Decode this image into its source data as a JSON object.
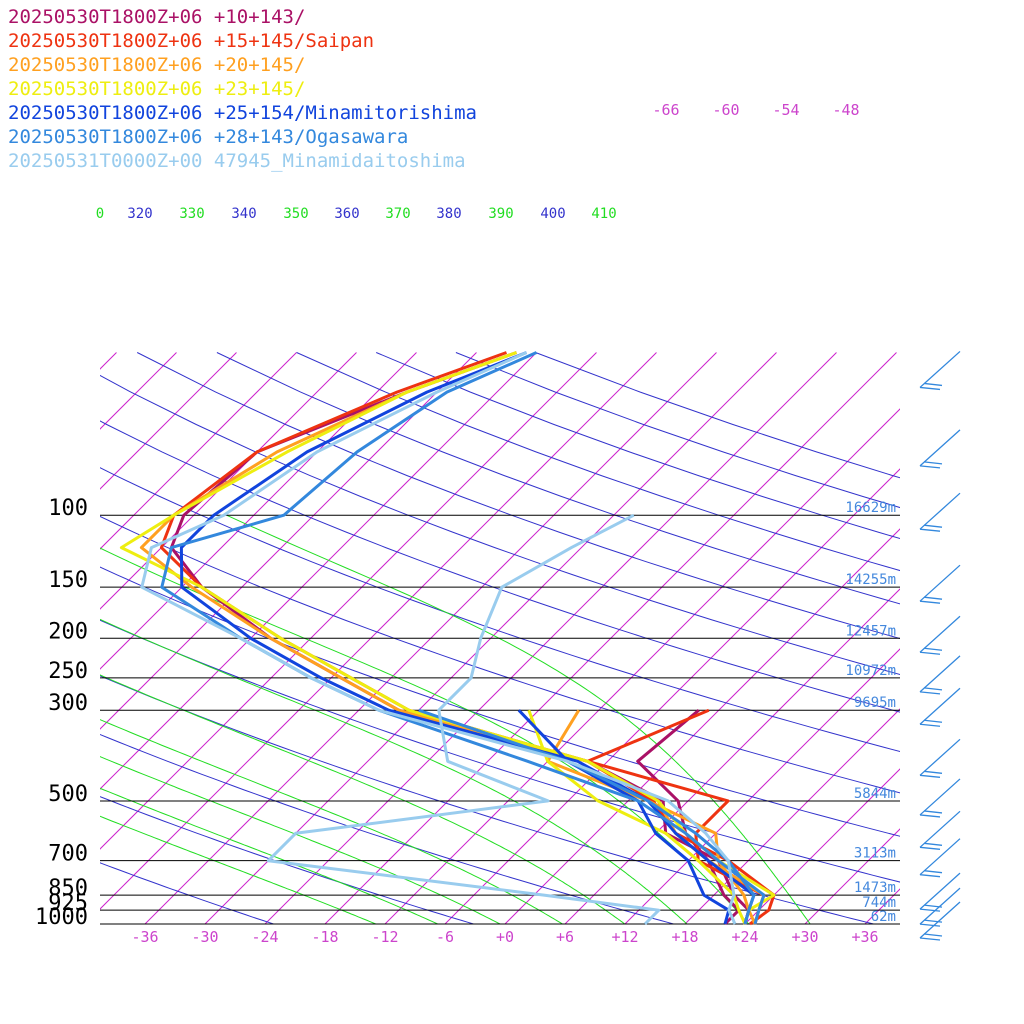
{
  "chart_data": {
    "type": "line",
    "subtype": "skew-T log-P",
    "colors": {
      "isotherm": "#cc22cc",
      "isobar": "#000000",
      "dry_adiabat": "#3333cc",
      "moist_adiabat": "#22dd22",
      "height_label": "#4488dd"
    },
    "series": [
      {
        "name": "20250530T1800Z+06 +10+143/",
        "color": "#aa1166",
        "temperature": [
          [
            1000,
            24
          ],
          [
            925,
            23
          ],
          [
            850,
            20
          ],
          [
            700,
            15
          ],
          [
            600,
            7
          ],
          [
            500,
            3.5
          ],
          [
            400,
            -8
          ],
          [
            300,
            -32
          ],
          [
            250,
            -41
          ],
          [
            200,
            -52
          ],
          [
            150,
            -64
          ],
          [
            120,
            -71
          ],
          [
            100,
            -73
          ],
          [
            70,
            -72
          ],
          [
            50,
            -63
          ],
          [
            40,
            -56
          ]
        ],
        "dewpoint": [
          [
            1000,
            22
          ],
          [
            925,
            22
          ],
          [
            850,
            19
          ],
          [
            700,
            14
          ],
          [
            600,
            9
          ],
          [
            500,
            5
          ],
          [
            400,
            -3
          ],
          [
            300,
            -2
          ]
        ]
      },
      {
        "name": "20250530T1800Z+06 +15+145/Saipan",
        "color": "#ee3311",
        "temperature": [
          [
            1000,
            24.5
          ],
          [
            925,
            25
          ],
          [
            850,
            24
          ],
          [
            700,
            16
          ],
          [
            600,
            8
          ],
          [
            500,
            2.5
          ],
          [
            400,
            -8
          ],
          [
            300,
            -31
          ],
          [
            250,
            -40
          ],
          [
            200,
            -51
          ],
          [
            150,
            -64
          ],
          [
            120,
            -72
          ],
          [
            100,
            -74
          ],
          [
            70,
            -72
          ],
          [
            50,
            -64
          ],
          [
            40,
            -57
          ]
        ],
        "dewpoint": [
          [
            1000,
            25
          ],
          [
            925,
            24
          ],
          [
            850,
            23
          ],
          [
            700,
            13
          ],
          [
            600,
            10
          ],
          [
            500,
            10
          ],
          [
            400,
            -8
          ],
          [
            300,
            -1
          ]
        ]
      },
      {
        "name": "20250530T1800Z+06 +20+145/",
        "color": "#ffa020",
        "temperature": [
          [
            1000,
            25
          ],
          [
            925,
            24
          ],
          [
            850,
            23
          ],
          [
            700,
            14
          ],
          [
            600,
            8
          ],
          [
            500,
            3
          ],
          [
            400,
            -8
          ],
          [
            300,
            -32
          ],
          [
            250,
            -41
          ],
          [
            200,
            -52
          ],
          [
            150,
            -65
          ],
          [
            120,
            -74
          ],
          [
            100,
            -74
          ],
          [
            70,
            -70
          ],
          [
            50,
            -63
          ],
          [
            40,
            -56
          ]
        ],
        "dewpoint": [
          [
            1000,
            25
          ],
          [
            925,
            23
          ],
          [
            850,
            21
          ],
          [
            700,
            15
          ],
          [
            600,
            12
          ],
          [
            500,
            2
          ],
          [
            400,
            -12
          ],
          [
            300,
            -14
          ]
        ]
      },
      {
        "name": "20250530T1800Z+06 +23+145/",
        "color": "#eeee10",
        "temperature": [
          [
            1000,
            24
          ],
          [
            925,
            23
          ],
          [
            850,
            24
          ],
          [
            700,
            15
          ],
          [
            600,
            9
          ],
          [
            500,
            3
          ],
          [
            400,
            -8
          ],
          [
            300,
            -31
          ],
          [
            250,
            -40
          ],
          [
            200,
            -51
          ],
          [
            150,
            -64
          ],
          [
            120,
            -76
          ],
          [
            100,
            -74
          ],
          [
            70,
            -69
          ],
          [
            50,
            -63
          ],
          [
            40,
            -56
          ]
        ],
        "dewpoint": [
          [
            1000,
            24
          ],
          [
            925,
            22
          ],
          [
            850,
            20
          ],
          [
            700,
            13
          ],
          [
            600,
            7
          ],
          [
            500,
            -3
          ],
          [
            400,
            -12
          ],
          [
            300,
            -19
          ]
        ]
      },
      {
        "name": "20250530T1800Z+06 +25+154/Minamitorishima",
        "color": "#1144dd",
        "temperature": [
          [
            1000,
            24
          ],
          [
            925,
            23
          ],
          [
            850,
            22
          ],
          [
            700,
            14
          ],
          [
            600,
            8
          ],
          [
            500,
            2
          ],
          [
            400,
            -9
          ],
          [
            300,
            -33
          ],
          [
            250,
            -43
          ],
          [
            200,
            -54
          ],
          [
            150,
            -66
          ],
          [
            120,
            -70
          ],
          [
            100,
            -70
          ],
          [
            70,
            -67
          ],
          [
            50,
            -61
          ],
          [
            40,
            -55
          ]
        ],
        "dewpoint": [
          [
            1000,
            22
          ],
          [
            925,
            21
          ],
          [
            850,
            17
          ],
          [
            700,
            12
          ],
          [
            600,
            6
          ],
          [
            500,
            1
          ],
          [
            400,
            -10
          ],
          [
            300,
            -20
          ]
        ]
      },
      {
        "name": "20250530T1800Z+06 +28+143/Ogasawara",
        "color": "#3388dd",
        "temperature": [
          [
            1000,
            25
          ],
          [
            925,
            24
          ],
          [
            850,
            23
          ],
          [
            700,
            15
          ],
          [
            600,
            9
          ],
          [
            500,
            1
          ],
          [
            400,
            -14
          ],
          [
            300,
            -34
          ],
          [
            250,
            -44
          ],
          [
            200,
            -55
          ],
          [
            150,
            -68
          ],
          [
            120,
            -71
          ],
          [
            100,
            -63
          ],
          [
            70,
            -62
          ],
          [
            50,
            -59
          ],
          [
            40,
            -54
          ]
        ],
        "dewpoint": [
          [
            1000,
            24
          ],
          [
            925,
            23
          ],
          [
            850,
            22
          ],
          [
            700,
            16
          ],
          [
            600,
            10
          ],
          [
            500,
            2
          ],
          [
            400,
            -10
          ],
          [
            300,
            -30
          ]
        ]
      },
      {
        "name": "20250531T0000Z+00 47945_Minamidaitoshima",
        "color": "#99ccee",
        "temperature": [
          [
            1000,
            23
          ],
          [
            925,
            21
          ],
          [
            850,
            20
          ],
          [
            700,
            16
          ],
          [
            600,
            11
          ],
          [
            500,
            4
          ],
          [
            400,
            -10
          ],
          [
            300,
            -34
          ],
          [
            250,
            -44
          ],
          [
            200,
            -55
          ],
          [
            150,
            -70
          ],
          [
            120,
            -73
          ],
          [
            100,
            -69
          ],
          [
            70,
            -66
          ],
          [
            50,
            -60
          ],
          [
            40,
            -55
          ]
        ],
        "dewpoint": [
          [
            1000,
            14
          ],
          [
            925,
            14
          ],
          [
            850,
            1
          ],
          [
            700,
            -30
          ],
          [
            600,
            -30
          ],
          [
            500,
            -8
          ],
          [
            400,
            -22
          ],
          [
            300,
            -28
          ],
          [
            250,
            -28
          ],
          [
            200,
            -31
          ],
          [
            150,
            -34
          ],
          [
            120,
            -31
          ],
          [
            100,
            -28
          ]
        ]
      }
    ],
    "pressure_levels": [
      100,
      150,
      200,
      250,
      300,
      500,
      700,
      850,
      925,
      1000
    ],
    "x_ticks": [
      "-36",
      "-30",
      "-24",
      "-18",
      "-12",
      "-6",
      "+0",
      "+6",
      "+12",
      "+18",
      "+24",
      "+30",
      "+36"
    ],
    "x_tick_values": [
      -36,
      -30,
      -24,
      -18,
      -12,
      -6,
      0,
      6,
      12,
      18,
      24,
      30,
      36
    ],
    "upper_isotherm_labels": [
      "-66",
      "-60",
      "-54",
      "-48"
    ],
    "theta_labels": [
      "0",
      "320",
      "330",
      "340",
      "350",
      "360",
      "370",
      "380",
      "390",
      "400",
      "410"
    ],
    "mixing_labels": [
      "-66",
      "-60",
      "-54",
      "-48"
    ],
    "heights": [
      {
        "p": 100,
        "label": "16629m"
      },
      {
        "p": 150,
        "label": "14255m"
      },
      {
        "p": 200,
        "label": "12457m"
      },
      {
        "p": 250,
        "label": "10972m"
      },
      {
        "p": 300,
        "label": "9695m"
      },
      {
        "p": 500,
        "label": "5844m"
      },
      {
        "p": 700,
        "label": "3113m"
      },
      {
        "p": 850,
        "label": "1473m"
      },
      {
        "p": 925,
        "label": "744m"
      },
      {
        "p": 1000,
        "label": "62m"
      }
    ],
    "wind_barb_levels": [
      45,
      70,
      100,
      150,
      200,
      250,
      300,
      400,
      500,
      600,
      700,
      850,
      925,
      1000
    ]
  }
}
